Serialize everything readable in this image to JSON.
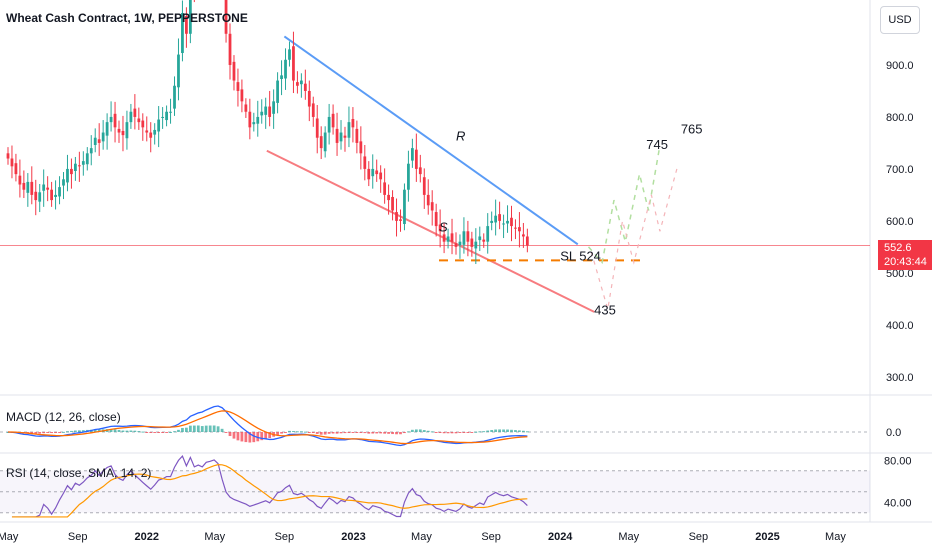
{
  "header": {
    "title": "Wheat Cash Contract, 1W, PEPPERSTONE",
    "currency": "USD"
  },
  "colors": {
    "up": "#26a69a",
    "down": "#f23645",
    "upper_trendline": "#5b9cf6",
    "lower_trendline": "#f77c80",
    "stop_line": "#f57c00",
    "projection": "#b2dfa0",
    "macd_line": "#2962ff",
    "signal_line": "#ff6d00",
    "rsi_line": "#7e57c2",
    "rsi_sma": "#ff9800"
  },
  "chart_data": [
    {
      "type": "candlestick",
      "pane": "price",
      "title": "Wheat Cash Contract, 1W, PEPPERSTONE",
      "x_tick_labels": [
        "May",
        "Sep",
        "2022",
        "May",
        "Sep",
        "2023",
        "May",
        "Sep",
        "2024",
        "May",
        "Sep",
        "2025",
        "May"
      ],
      "y_ticks": [
        300,
        400,
        500,
        600,
        700,
        800,
        900
      ],
      "y_tick_labels": [
        "300.0",
        "400.0",
        "500.0",
        "600.0",
        "700.0",
        "800.0",
        "900.0"
      ],
      "ylim": [
        265,
        1025
      ],
      "last_price": "552.6",
      "countdown": "20:43:44",
      "close_series": {
        "start": "2021-05",
        "freq": "weekly",
        "values": [
          720,
          705,
          690,
          670,
          660,
          675,
          650,
          640,
          655,
          670,
          660,
          640,
          650,
          665,
          680,
          700,
          690,
          710,
          705,
          715,
          730,
          740,
          760,
          750,
          770,
          790,
          800,
          780,
          770,
          765,
          790,
          810,
          800,
          790,
          780,
          770,
          760,
          775,
          795,
          800,
          810,
          810,
          860,
          920,
          1000,
          960,
          1100,
          1050,
          1080,
          1070,
          1150,
          1170,
          1200,
          1180,
          1080,
          960,
          900,
          870,
          850,
          830,
          810,
          780,
          790,
          800,
          810,
          820,
          800,
          830,
          870,
          880,
          910,
          930,
          870,
          860,
          870,
          850,
          820,
          800,
          760,
          740,
          770,
          800,
          780,
          750,
          770,
          760,
          790,
          780,
          750,
          730,
          700,
          680,
          700,
          690,
          680,
          650,
          640,
          620,
          600,
          600,
          660,
          710,
          740,
          700,
          690,
          650,
          630,
          620,
          590,
          580,
          560,
          570,
          560,
          550,
          560,
          580,
          560,
          550,
          560,
          570,
          560,
          590,
          600,
          610,
          600,
          595,
          600,
          590,
          585,
          580,
          570,
          552.6
        ]
      },
      "annotations": [
        {
          "text": "R",
          "x": "2023-07",
          "y": 755
        },
        {
          "text": "S",
          "x": "2023-06",
          "y": 580
        },
        {
          "text": "SL 524",
          "x": "2024-01",
          "y": 524
        },
        {
          "text": "435",
          "x": "2024-03",
          "y": 420
        },
        {
          "text": "745",
          "x": "2024-06",
          "y": 738
        },
        {
          "text": "765",
          "x": "2024-08",
          "y": 768
        }
      ],
      "trendlines": [
        {
          "name": "upper",
          "from": {
            "x": "2022-09",
            "y": 955
          },
          "to": {
            "x": "2024-02",
            "y": 555
          }
        },
        {
          "name": "lower",
          "from": {
            "x": "2022-08",
            "y": 735
          },
          "to": {
            "x": "2024-03",
            "y": 425
          }
        }
      ],
      "stop_level": 524
    },
    {
      "type": "line",
      "pane": "macd",
      "label": "MACD (12, 26, close)",
      "y_tick_labels": [
        "0.0"
      ]
    },
    {
      "type": "line",
      "pane": "rsi",
      "label": "RSI (14, close, SMA, 14, 2)",
      "y_tick_labels": [
        "80.00",
        "40.00"
      ],
      "ylim": [
        25,
        85
      ]
    }
  ]
}
